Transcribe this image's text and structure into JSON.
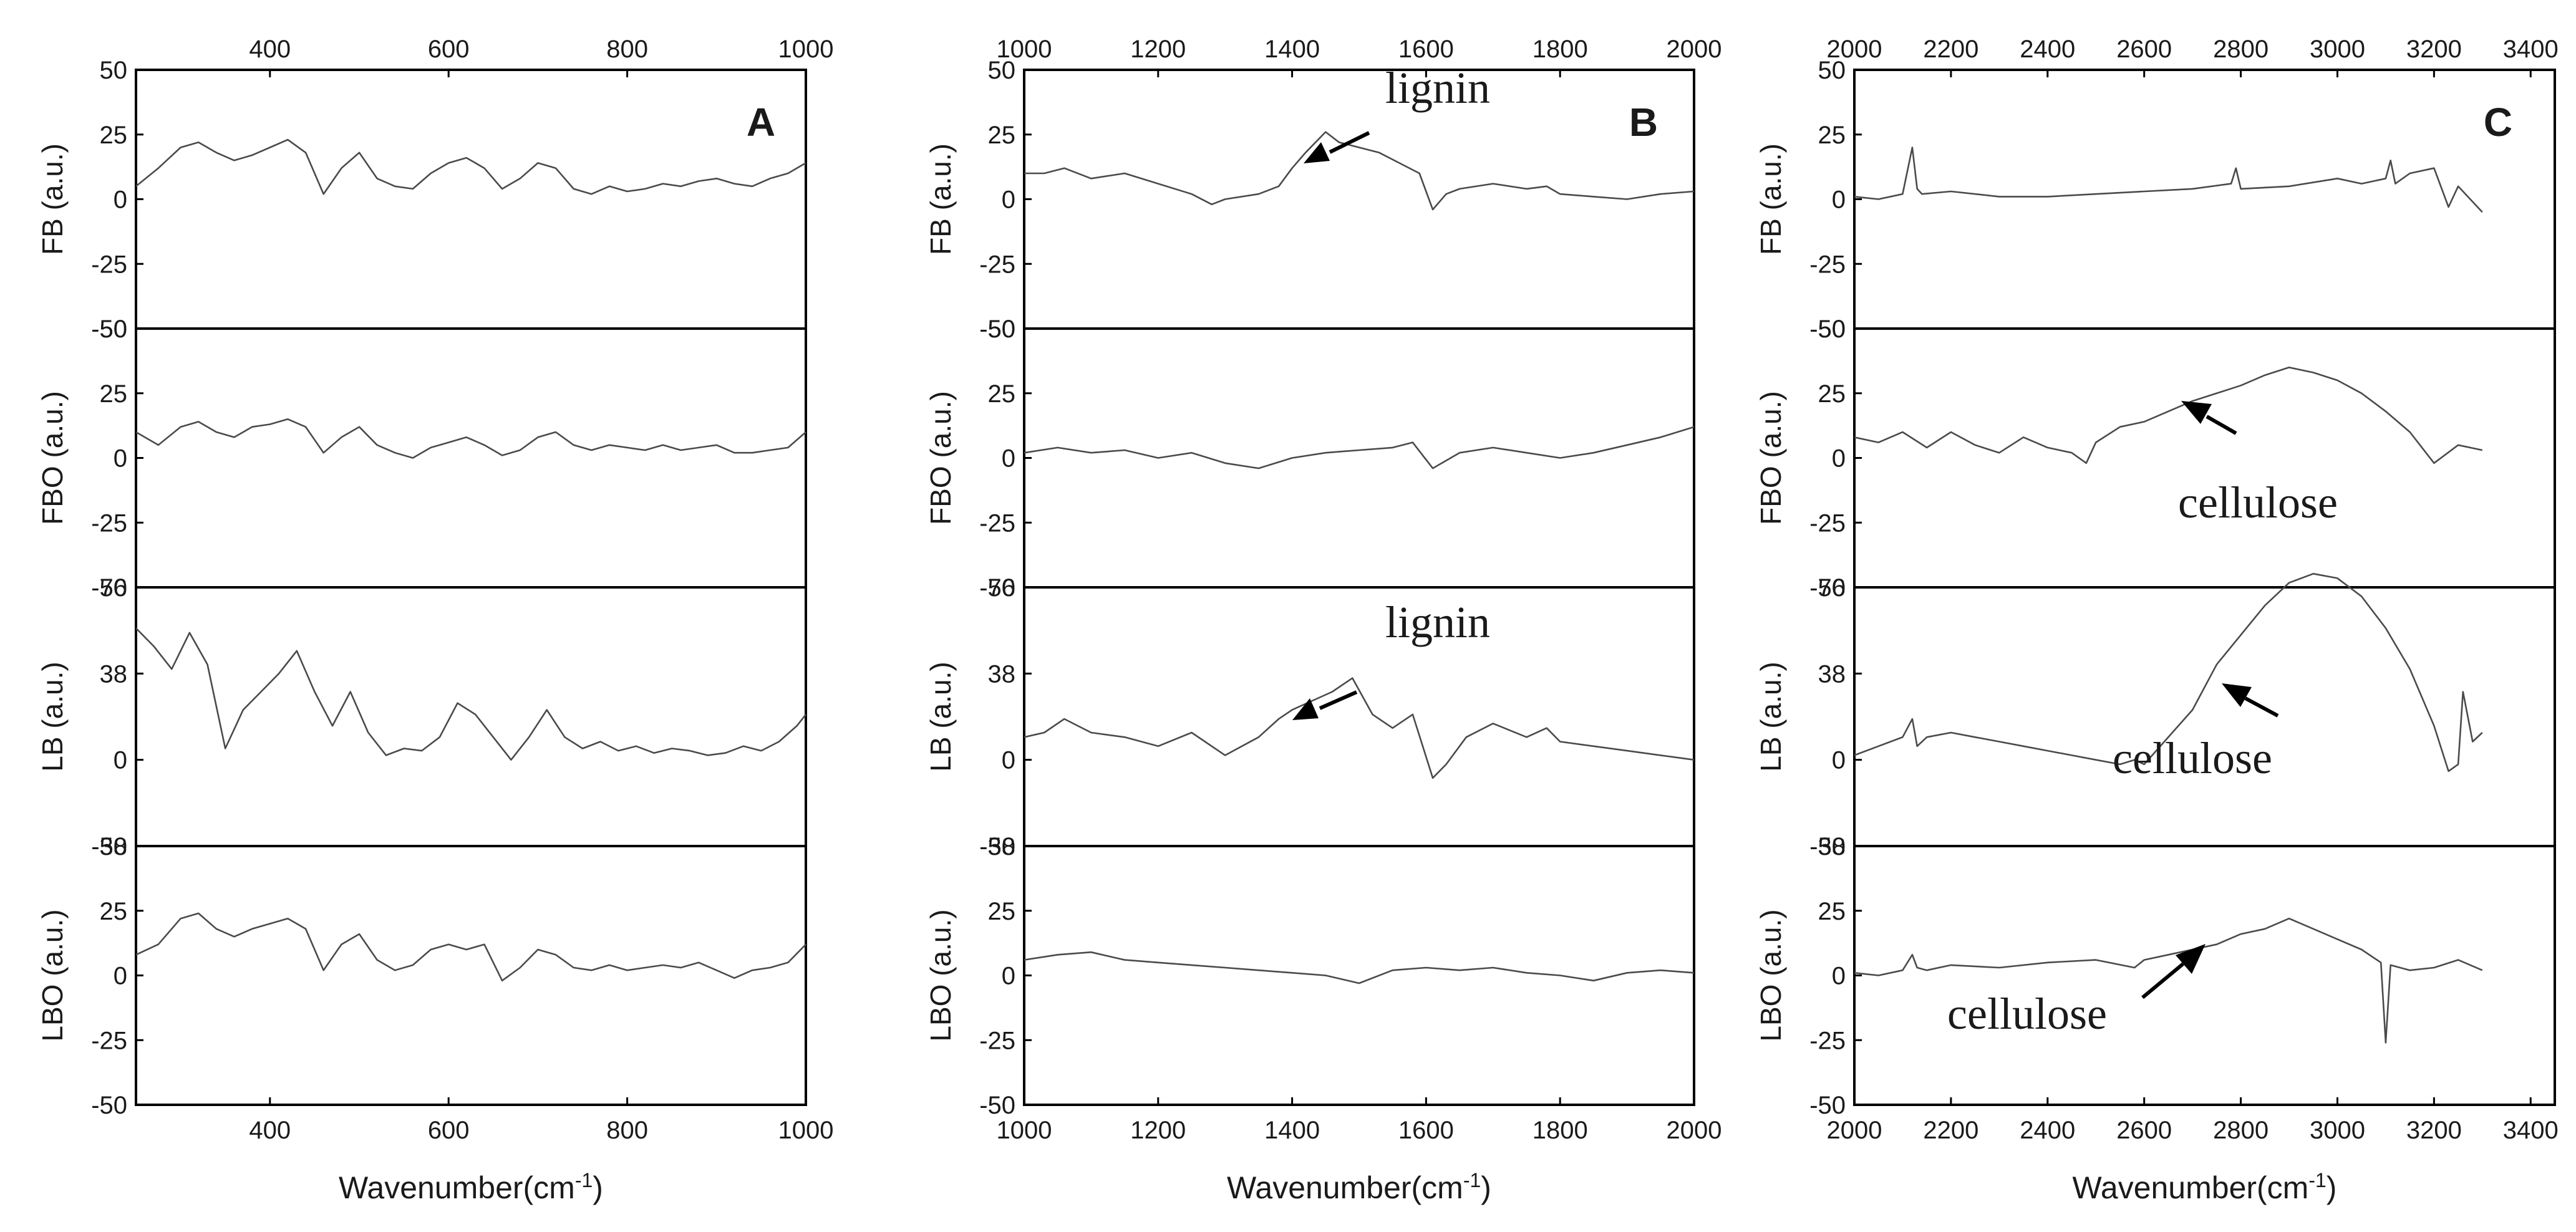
{
  "chart_data": [
    {
      "type": "line",
      "panel": "A",
      "xlim": [
        250,
        1000
      ],
      "x_ticks": [
        400,
        600,
        800,
        1000
      ],
      "xlabel": "Wavenumber(cm-1)",
      "x_unit": "cm",
      "x_unit_sup": "-1",
      "x_label_prefix": "Wavenumber(",
      "x_label_suffix": ")",
      "subplots": [
        {
          "ylabel": "FB (a.u.)",
          "ylim": [
            -50,
            50
          ],
          "y_ticks": [
            "50",
            "25",
            "0",
            "-25",
            "-50"
          ],
          "x": [
            250,
            275,
            300,
            320,
            340,
            360,
            380,
            400,
            420,
            440,
            460,
            480,
            500,
            520,
            540,
            560,
            580,
            600,
            620,
            640,
            660,
            680,
            700,
            720,
            740,
            760,
            780,
            800,
            820,
            840,
            860,
            880,
            900,
            920,
            940,
            960,
            980,
            1000
          ],
          "y": [
            5,
            12,
            20,
            22,
            18,
            15,
            17,
            20,
            23,
            18,
            2,
            12,
            18,
            8,
            5,
            4,
            10,
            14,
            16,
            12,
            4,
            8,
            14,
            12,
            4,
            2,
            5,
            3,
            4,
            6,
            5,
            7,
            8,
            6,
            5,
            8,
            10,
            14
          ]
        },
        {
          "ylabel": "FBO (a.u.)",
          "ylim": [
            -50,
            50
          ],
          "y_ticks": [
            "50",
            "25",
            "0",
            "-25",
            "-50"
          ],
          "x": [
            250,
            275,
            300,
            320,
            340,
            360,
            380,
            400,
            420,
            440,
            460,
            480,
            500,
            520,
            540,
            560,
            580,
            600,
            620,
            640,
            660,
            680,
            700,
            720,
            740,
            760,
            780,
            800,
            820,
            840,
            860,
            880,
            900,
            920,
            940,
            960,
            980,
            1000
          ],
          "y": [
            10,
            5,
            12,
            14,
            10,
            8,
            12,
            13,
            15,
            12,
            2,
            8,
            12,
            5,
            2,
            0,
            4,
            6,
            8,
            5,
            1,
            3,
            8,
            10,
            5,
            3,
            5,
            4,
            3,
            5,
            3,
            4,
            5,
            2,
            2,
            3,
            4,
            10
          ]
        },
        {
          "ylabel": "LB (a.u.)",
          "ylim": [
            -38,
            76
          ],
          "y_ticks": [
            "76",
            "38",
            "0",
            "-38"
          ],
          "x": [
            250,
            270,
            290,
            310,
            330,
            350,
            370,
            390,
            410,
            430,
            450,
            470,
            490,
            510,
            530,
            550,
            570,
            590,
            610,
            630,
            650,
            670,
            690,
            710,
            730,
            750,
            770,
            790,
            810,
            830,
            850,
            870,
            890,
            910,
            930,
            950,
            970,
            990,
            1000
          ],
          "y": [
            58,
            50,
            40,
            56,
            42,
            5,
            22,
            30,
            38,
            48,
            30,
            15,
            30,
            12,
            2,
            5,
            4,
            10,
            25,
            20,
            10,
            0,
            10,
            22,
            10,
            5,
            8,
            4,
            6,
            3,
            5,
            4,
            2,
            3,
            6,
            4,
            8,
            15,
            20
          ]
        },
        {
          "ylabel": "LBO (a.u.)",
          "ylim": [
            -50,
            50
          ],
          "y_ticks": [
            "50",
            "25",
            "0",
            "-25",
            "-50"
          ],
          "x": [
            250,
            275,
            300,
            320,
            340,
            360,
            380,
            400,
            420,
            440,
            460,
            480,
            500,
            520,
            540,
            560,
            580,
            600,
            620,
            640,
            660,
            680,
            700,
            720,
            740,
            760,
            780,
            800,
            820,
            840,
            860,
            880,
            900,
            920,
            940,
            960,
            980,
            1000
          ],
          "y": [
            8,
            12,
            22,
            24,
            18,
            15,
            18,
            20,
            22,
            18,
            2,
            12,
            16,
            6,
            2,
            4,
            10,
            12,
            10,
            12,
            -2,
            3,
            10,
            8,
            3,
            2,
            4,
            2,
            3,
            4,
            3,
            5,
            2,
            -1,
            2,
            3,
            5,
            12
          ]
        }
      ]
    },
    {
      "type": "line",
      "panel": "B",
      "xlim": [
        1000,
        2000
      ],
      "x_ticks": [
        1000,
        1200,
        1400,
        1600,
        1800,
        2000
      ],
      "xlabel": "Wavenumber(cm-1)",
      "x_unit": "cm",
      "x_unit_sup": "-1",
      "x_label_prefix": "Wavenumber(",
      "x_label_suffix": ")",
      "subplots": [
        {
          "ylabel": "FB (a.u.)",
          "ylim": [
            -50,
            50
          ],
          "y_ticks": [
            "50",
            "25",
            "0",
            "-25",
            "-50"
          ],
          "x": [
            1000,
            1030,
            1060,
            1100,
            1150,
            1200,
            1250,
            1280,
            1300,
            1350,
            1380,
            1400,
            1420,
            1450,
            1470,
            1500,
            1530,
            1560,
            1590,
            1610,
            1630,
            1650,
            1700,
            1750,
            1780,
            1800,
            1850,
            1900,
            1950,
            2000
          ],
          "y": [
            10,
            10,
            12,
            8,
            10,
            6,
            2,
            -2,
            0,
            2,
            5,
            12,
            18,
            26,
            22,
            20,
            18,
            14,
            10,
            -4,
            2,
            4,
            6,
            4,
            5,
            2,
            1,
            0,
            2,
            3
          ]
        },
        {
          "ylabel": "FBO (a.u.)",
          "ylim": [
            -50,
            50
          ],
          "y_ticks": [
            "50",
            "25",
            "0",
            "-25",
            "-50"
          ],
          "x": [
            1000,
            1050,
            1100,
            1150,
            1200,
            1250,
            1300,
            1350,
            1400,
            1450,
            1500,
            1550,
            1580,
            1610,
            1650,
            1700,
            1750,
            1800,
            1850,
            1900,
            1950,
            2000
          ],
          "y": [
            2,
            4,
            2,
            3,
            0,
            2,
            -2,
            -4,
            0,
            2,
            3,
            4,
            6,
            -4,
            2,
            4,
            2,
            0,
            2,
            5,
            8,
            12
          ]
        },
        {
          "ylabel": "LB (a.u.)",
          "ylim": [
            -38,
            76
          ],
          "y_ticks": [
            "76",
            "38",
            "0",
            "-38"
          ],
          "x": [
            1000,
            1030,
            1060,
            1100,
            1150,
            1200,
            1250,
            1300,
            1350,
            1380,
            1400,
            1430,
            1460,
            1490,
            1520,
            1550,
            1580,
            1610,
            1630,
            1660,
            1700,
            1750,
            1780,
            1800,
            1850,
            1900,
            1950,
            2000
          ],
          "y": [
            10,
            12,
            18,
            12,
            10,
            6,
            12,
            2,
            10,
            18,
            22,
            26,
            30,
            36,
            20,
            14,
            20,
            -8,
            -2,
            10,
            16,
            10,
            14,
            8,
            6,
            4,
            2,
            0
          ]
        },
        {
          "ylabel": "LBO (a.u.)",
          "ylim": [
            -50,
            50
          ],
          "y_ticks": [
            "50",
            "25",
            "0",
            "-25",
            "-50"
          ],
          "x": [
            1000,
            1050,
            1100,
            1150,
            1200,
            1250,
            1300,
            1350,
            1400,
            1450,
            1500,
            1550,
            1600,
            1650,
            1700,
            1750,
            1800,
            1850,
            1900,
            1950,
            2000
          ],
          "y": [
            6,
            8,
            9,
            6,
            5,
            4,
            3,
            2,
            1,
            0,
            -3,
            2,
            3,
            2,
            3,
            1,
            0,
            -2,
            1,
            2,
            1
          ]
        }
      ]
    },
    {
      "type": "line",
      "panel": "C",
      "xlim": [
        2000,
        3450
      ],
      "x_ticks": [
        2000,
        2200,
        2400,
        2600,
        2800,
        3000,
        3200,
        3400
      ],
      "xlabel": "Wavenumber(cm-1)",
      "x_unit": "cm",
      "x_unit_sup": "-1",
      "x_label_prefix": "Wavenumber(",
      "x_label_suffix": ")",
      "subplots": [
        {
          "ylabel": "FB (a.u.)",
          "ylim": [
            -50,
            50
          ],
          "y_ticks": [
            "50",
            "25",
            "0",
            "-25",
            "-50"
          ],
          "x": [
            2000,
            2050,
            2100,
            2120,
            2130,
            2140,
            2200,
            2300,
            2400,
            2500,
            2600,
            2700,
            2780,
            2790,
            2800,
            2900,
            3000,
            3050,
            3100,
            3110,
            3120,
            3150,
            3200,
            3230,
            3250,
            3300
          ],
          "y": [
            1,
            0,
            2,
            20,
            4,
            2,
            3,
            1,
            1,
            2,
            3,
            4,
            6,
            12,
            4,
            5,
            8,
            6,
            8,
            15,
            6,
            10,
            12,
            -3,
            5,
            -5
          ]
        },
        {
          "ylabel": "FBO (a.u.)",
          "ylim": [
            -50,
            50
          ],
          "y_ticks": [
            "50",
            "25",
            "0",
            "-25",
            "-50"
          ],
          "x": [
            2000,
            2050,
            2100,
            2150,
            2200,
            2250,
            2300,
            2350,
            2400,
            2450,
            2480,
            2500,
            2550,
            2600,
            2650,
            2700,
            2750,
            2800,
            2850,
            2900,
            2950,
            3000,
            3050,
            3100,
            3150,
            3200,
            3250,
            3300
          ],
          "y": [
            8,
            6,
            10,
            4,
            10,
            5,
            2,
            8,
            4,
            2,
            -2,
            6,
            12,
            14,
            18,
            22,
            25,
            28,
            32,
            35,
            33,
            30,
            25,
            18,
            10,
            -2,
            5,
            3
          ]
        },
        {
          "ylabel": "LB (a.u.)",
          "ylim": [
            -38,
            76
          ],
          "y_ticks": [
            "76",
            "38",
            "0",
            "-38"
          ],
          "x": [
            2000,
            2050,
            2100,
            2120,
            2130,
            2150,
            2200,
            2250,
            2300,
            2350,
            2400,
            2450,
            2500,
            2550,
            2580,
            2600,
            2650,
            2700,
            2750,
            2800,
            2850,
            2900,
            2950,
            3000,
            3050,
            3100,
            3150,
            3200,
            3230,
            3250,
            3260,
            3280,
            3300
          ],
          "y": [
            2,
            6,
            10,
            18,
            6,
            10,
            12,
            10,
            8,
            6,
            4,
            2,
            0,
            -2,
            0,
            -2,
            10,
            22,
            42,
            55,
            68,
            78,
            82,
            80,
            72,
            58,
            40,
            15,
            -5,
            -2,
            30,
            8,
            12
          ]
        },
        {
          "ylabel": "LBO (a.u.)",
          "ylim": [
            -50,
            50
          ],
          "y_ticks": [
            "50",
            "25",
            "0",
            "-25",
            "-50"
          ],
          "x": [
            2000,
            2050,
            2100,
            2120,
            2130,
            2150,
            2200,
            2300,
            2400,
            2500,
            2580,
            2600,
            2650,
            2700,
            2750,
            2800,
            2850,
            2900,
            2950,
            3000,
            3050,
            3090,
            3100,
            3110,
            3150,
            3200,
            3250,
            3300
          ],
          "y": [
            1,
            0,
            2,
            8,
            3,
            2,
            4,
            3,
            5,
            6,
            3,
            6,
            8,
            10,
            12,
            16,
            18,
            22,
            18,
            14,
            10,
            5,
            -26,
            4,
            2,
            3,
            6,
            2
          ]
        }
      ]
    }
  ],
  "annotations": {
    "panel_letters": [
      "A",
      "B",
      "C"
    ],
    "lignin_top": "lignin",
    "lignin_bottom": "lignin",
    "cellulose_fbo": "cellulose",
    "cellulose_lb": "cellulose",
    "cellulose_lbo": "cellulose"
  }
}
